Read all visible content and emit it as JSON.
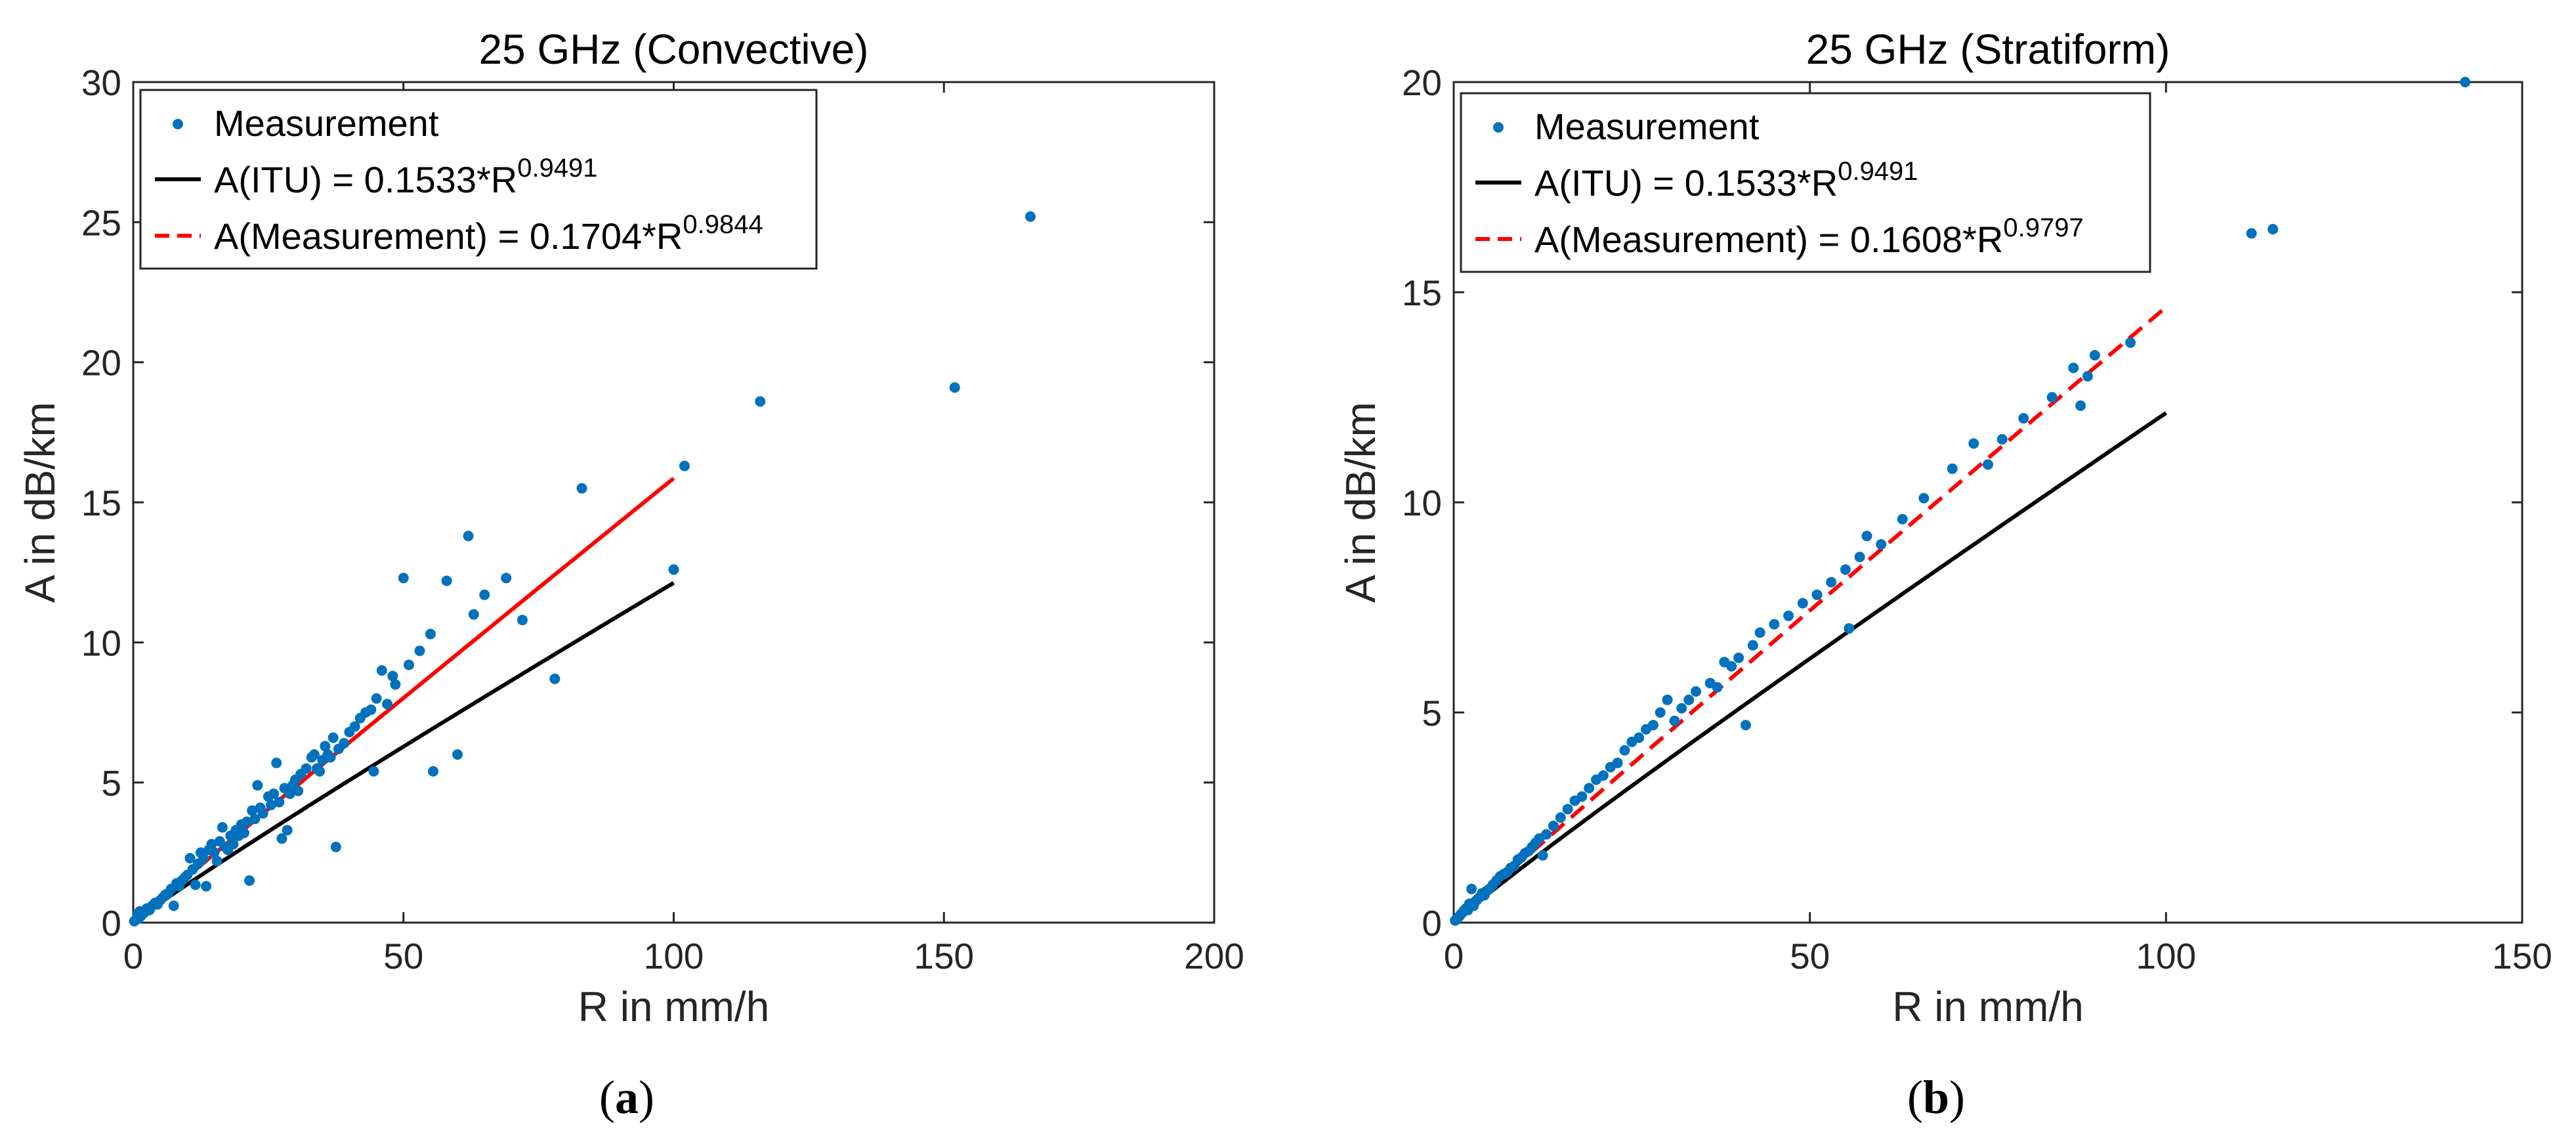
{
  "colors": {
    "measurement": "#0072BD",
    "itu": "#000000",
    "fit_a": "#FF0000",
    "fit_b": "#FF0000",
    "axis": "#262626"
  },
  "chart_data": [
    {
      "type": "scatter",
      "panel_label_open": "(",
      "panel_label_letter": "a",
      "panel_label_close": ")",
      "title": "25 GHz (Convective)",
      "xlabel": "R in mm/h",
      "ylabel": "A in dB/km",
      "xlim": [
        0,
        200
      ],
      "ylim": [
        0,
        30
      ],
      "xticks": [
        0,
        50,
        100,
        150,
        200
      ],
      "yticks": [
        0,
        5,
        10,
        15,
        20,
        25,
        30
      ],
      "legend": {
        "position": "top-left",
        "entries": [
          {
            "kind": "marker",
            "text": "Measurement"
          },
          {
            "kind": "solid",
            "base": "A(ITU) = 0.1533*R",
            "exponent": "0.9491"
          },
          {
            "kind": "dashed",
            "base": "A(Measurement) = 0.1704*R",
            "exponent": "0.9844"
          }
        ]
      },
      "series": [
        {
          "name": "Measurement",
          "style": "points",
          "points": [
            [
              0.2,
              0.05
            ],
            [
              0.5,
              0.1
            ],
            [
              0.8,
              0.3
            ],
            [
              1,
              0.15
            ],
            [
              1.2,
              0.4
            ],
            [
              1.5,
              0.25
            ],
            [
              2,
              0.35
            ],
            [
              2.5,
              0.5
            ],
            [
              3,
              0.45
            ],
            [
              3.5,
              0.6
            ],
            [
              4,
              0.7
            ],
            [
              4.5,
              0.65
            ],
            [
              5,
              0.8
            ],
            [
              5.5,
              0.9
            ],
            [
              6,
              1.0
            ],
            [
              6.5,
              1.05
            ],
            [
              7,
              1.2
            ],
            [
              7.5,
              0.6
            ],
            [
              8,
              1.4
            ],
            [
              8.5,
              1.3
            ],
            [
              9,
              1.5
            ],
            [
              9.5,
              1.6
            ],
            [
              10,
              1.7
            ],
            [
              10.5,
              2.3
            ],
            [
              11,
              1.9
            ],
            [
              11.5,
              1.35
            ],
            [
              12,
              2.1
            ],
            [
              12.5,
              2.5
            ],
            [
              13,
              2.3
            ],
            [
              13.5,
              1.3
            ],
            [
              14,
              2.6
            ],
            [
              14.5,
              2.8
            ],
            [
              15,
              2.5
            ],
            [
              15.5,
              2.2
            ],
            [
              16,
              2.9
            ],
            [
              16.5,
              3.4
            ],
            [
              17,
              2.7
            ],
            [
              17.5,
              2.6
            ],
            [
              18,
              3.1
            ],
            [
              18.5,
              2.8
            ],
            [
              19,
              3.3
            ],
            [
              19.5,
              3.1
            ],
            [
              20,
              3.5
            ],
            [
              20.5,
              3.2
            ],
            [
              21,
              3.6
            ],
            [
              21.5,
              1.5
            ],
            [
              22,
              4.0
            ],
            [
              22.5,
              3.7
            ],
            [
              23,
              4.9
            ],
            [
              23.5,
              4.1
            ],
            [
              24,
              3.9
            ],
            [
              25,
              4.5
            ],
            [
              25.5,
              4.2
            ],
            [
              26,
              4.6
            ],
            [
              26.5,
              5.7
            ],
            [
              27,
              4.3
            ],
            [
              27.5,
              3.0
            ],
            [
              28,
              4.8
            ],
            [
              28.5,
              3.3
            ],
            [
              29,
              4.6
            ],
            [
              29.5,
              4.9
            ],
            [
              30,
              5.1
            ],
            [
              30.5,
              4.7
            ],
            [
              31,
              5.3
            ],
            [
              32,
              5.5
            ],
            [
              33,
              5.9
            ],
            [
              33.5,
              6.0
            ],
            [
              34,
              5.5
            ],
            [
              34.5,
              5.4
            ],
            [
              35,
              5.8
            ],
            [
              35.5,
              6.3
            ],
            [
              36,
              6.0
            ],
            [
              36.5,
              5.9
            ],
            [
              37,
              6.6
            ],
            [
              37.5,
              2.7
            ],
            [
              38,
              6.2
            ],
            [
              39,
              6.4
            ],
            [
              40,
              6.8
            ],
            [
              41,
              7.0
            ],
            [
              42,
              7.3
            ],
            [
              43,
              7.5
            ],
            [
              44,
              7.6
            ],
            [
              44.5,
              5.4
            ],
            [
              45,
              8.0
            ],
            [
              46,
              9.0
            ],
            [
              47,
              7.8
            ],
            [
              48,
              8.8
            ],
            [
              48.5,
              8.5
            ],
            [
              50,
              12.3
            ],
            [
              51,
              9.2
            ],
            [
              53,
              9.7
            ],
            [
              55,
              10.3
            ],
            [
              55.5,
              5.4
            ],
            [
              58,
              12.2
            ],
            [
              60,
              6.0
            ],
            [
              62,
              13.8
            ],
            [
              63,
              11.0
            ],
            [
              65,
              11.7
            ],
            [
              69,
              12.3
            ],
            [
              72,
              10.8
            ],
            [
              78,
              8.7
            ],
            [
              83,
              15.5
            ],
            [
              100,
              12.6
            ],
            [
              102,
              16.3
            ],
            [
              116,
              18.6
            ],
            [
              152,
              19.1
            ],
            [
              166,
              25.2
            ]
          ]
        },
        {
          "name": "A(ITU)",
          "style": "solid",
          "coef": 0.1533,
          "exp": 0.9491,
          "x_range": [
            0,
            100
          ]
        },
        {
          "name": "A(Measurement)",
          "style": "solid",
          "coef": 0.1704,
          "exp": 0.9844,
          "x_range": [
            0,
            100
          ]
        }
      ]
    },
    {
      "type": "scatter",
      "panel_label_open": "(",
      "panel_label_letter": "b",
      "panel_label_close": ")",
      "title": "25 GHz (Stratiform)",
      "xlabel": "R in mm/h",
      "ylabel": "A in dB/km",
      "xlim": [
        0,
        150
      ],
      "ylim": [
        0,
        20
      ],
      "xticks": [
        0,
        50,
        100,
        150
      ],
      "yticks": [
        0,
        5,
        10,
        15,
        20
      ],
      "legend": {
        "position": "top-left",
        "entries": [
          {
            "kind": "marker",
            "text": "Measurement"
          },
          {
            "kind": "solid",
            "base": "A(ITU) = 0.1533*R",
            "exponent": "0.9491"
          },
          {
            "kind": "dashed",
            "base": "A(Measurement) = 0.1608*R",
            "exponent": "0.9797"
          }
        ]
      },
      "series": [
        {
          "name": "Measurement",
          "style": "points",
          "points": [
            [
              0.2,
              0.05
            ],
            [
              0.5,
              0.1
            ],
            [
              0.8,
              0.15
            ],
            [
              1,
              0.2
            ],
            [
              1.3,
              0.25
            ],
            [
              1.5,
              0.3
            ],
            [
              1.8,
              0.35
            ],
            [
              2,
              0.3
            ],
            [
              2.2,
              0.45
            ],
            [
              2.5,
              0.8
            ],
            [
              2.8,
              0.4
            ],
            [
              3,
              0.5
            ],
            [
              3.3,
              0.55
            ],
            [
              3.6,
              0.6
            ],
            [
              4,
              0.7
            ],
            [
              4.3,
              0.65
            ],
            [
              4.6,
              0.75
            ],
            [
              5,
              0.8
            ],
            [
              5.5,
              0.9
            ],
            [
              6,
              1.0
            ],
            [
              6.5,
              1.1
            ],
            [
              7,
              1.15
            ],
            [
              7.5,
              1.2
            ],
            [
              8,
              1.3
            ],
            [
              8.5,
              1.35
            ],
            [
              9,
              1.5
            ],
            [
              9.5,
              1.55
            ],
            [
              10,
              1.65
            ],
            [
              10.5,
              1.7
            ],
            [
              11,
              1.8
            ],
            [
              11.5,
              1.9
            ],
            [
              12,
              2.0
            ],
            [
              12.5,
              1.6
            ],
            [
              13,
              2.1
            ],
            [
              14,
              2.3
            ],
            [
              15,
              2.5
            ],
            [
              16,
              2.7
            ],
            [
              17,
              2.9
            ],
            [
              18,
              3.0
            ],
            [
              19,
              3.2
            ],
            [
              20,
              3.4
            ],
            [
              21,
              3.5
            ],
            [
              22,
              3.7
            ],
            [
              23,
              3.8
            ],
            [
              24,
              4.1
            ],
            [
              25,
              4.3
            ],
            [
              26,
              4.4
            ],
            [
              27,
              4.6
            ],
            [
              28,
              4.7
            ],
            [
              29,
              5.0
            ],
            [
              30,
              5.3
            ],
            [
              31,
              4.8
            ],
            [
              32,
              5.1
            ],
            [
              33,
              5.3
            ],
            [
              34,
              5.5
            ],
            [
              36,
              5.7
            ],
            [
              37,
              5.6
            ],
            [
              38,
              6.2
            ],
            [
              39,
              6.1
            ],
            [
              40,
              6.3
            ],
            [
              41,
              4.7
            ],
            [
              42,
              6.6
            ],
            [
              43,
              6.9
            ],
            [
              45,
              7.1
            ],
            [
              47,
              7.3
            ],
            [
              49,
              7.6
            ],
            [
              51,
              7.8
            ],
            [
              53,
              8.1
            ],
            [
              55,
              8.4
            ],
            [
              55.5,
              7.0
            ],
            [
              57,
              8.7
            ],
            [
              58,
              9.2
            ],
            [
              60,
              9.0
            ],
            [
              63,
              9.6
            ],
            [
              66,
              10.1
            ],
            [
              70,
              10.8
            ],
            [
              73,
              11.4
            ],
            [
              75,
              10.9
            ],
            [
              77,
              11.5
            ],
            [
              80,
              12.0
            ],
            [
              84,
              12.5
            ],
            [
              87,
              13.2
            ],
            [
              88,
              12.3
            ],
            [
              89,
              13.0
            ],
            [
              90,
              13.5
            ],
            [
              95,
              13.8
            ],
            [
              112,
              16.4
            ],
            [
              115,
              16.5
            ],
            [
              142,
              20.0
            ]
          ]
        },
        {
          "name": "A(ITU)",
          "style": "solid",
          "coef": 0.1533,
          "exp": 0.9491,
          "x_range": [
            0,
            100
          ]
        },
        {
          "name": "A(Measurement)",
          "style": "dashed",
          "coef": 0.1608,
          "exp": 0.9797,
          "x_range": [
            0,
            100
          ]
        }
      ]
    }
  ]
}
